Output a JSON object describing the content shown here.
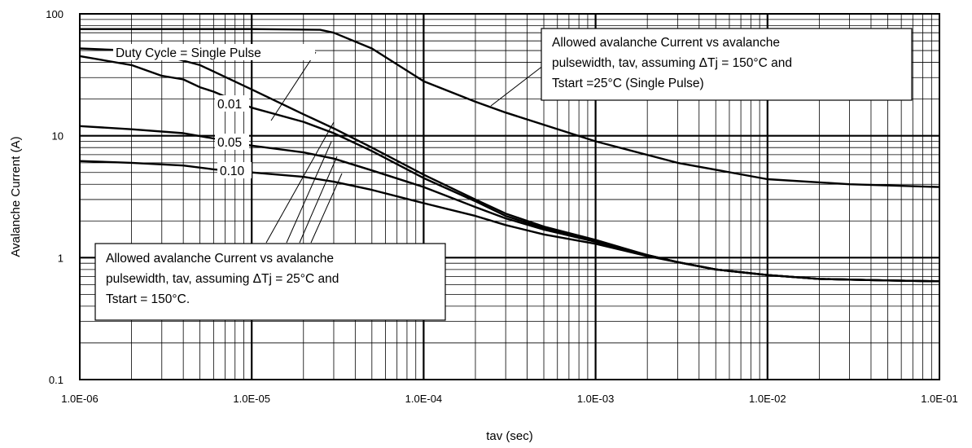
{
  "chart_data": {
    "type": "line",
    "title": "",
    "xlabel": "tav (sec)",
    "ylabel": "Avalanche Current (A)",
    "xscale": "log",
    "yscale": "log",
    "xlim": [
      1e-06,
      0.1
    ],
    "ylim": [
      0.1,
      100
    ],
    "grid": true,
    "x_tick_labels": [
      "1.0E-06",
      "1.0E-05",
      "1.0E-04",
      "1.0E-03",
      "1.0E-02",
      "1.0E-01"
    ],
    "y_tick_labels": [
      "0.1",
      "1",
      "10",
      "100"
    ],
    "series": [
      {
        "name": "Allowed avalanche Current (Single Pulse, Tstart = 25°C)",
        "points": [
          [
            1e-06,
            75
          ],
          [
            1e-05,
            75
          ],
          [
            2.5e-05,
            74
          ],
          [
            3e-05,
            70
          ],
          [
            5e-05,
            52
          ],
          [
            0.0001,
            28
          ],
          [
            0.0002,
            19
          ],
          [
            0.0003,
            15.5
          ],
          [
            0.001,
            9
          ],
          [
            0.003,
            6
          ],
          [
            0.01,
            4.4
          ],
          [
            0.03,
            4
          ],
          [
            0.1,
            3.8
          ]
        ]
      },
      {
        "name": "Single Pulse",
        "points": [
          [
            1e-06,
            52
          ],
          [
            2e-06,
            50
          ],
          [
            3e-06,
            46
          ],
          [
            5e-06,
            38
          ],
          [
            1e-05,
            24
          ],
          [
            2e-05,
            15
          ],
          [
            3e-05,
            11.5
          ],
          [
            5e-05,
            8
          ],
          [
            0.0001,
            4.8
          ],
          [
            0.0002,
            3
          ],
          [
            0.0003,
            2.3
          ],
          [
            0.0005,
            1.8
          ],
          [
            0.001,
            1.4
          ],
          [
            0.002,
            1.05
          ],
          [
            0.003,
            0.92
          ],
          [
            0.005,
            0.8
          ],
          [
            0.01,
            0.72
          ],
          [
            0.02,
            0.67
          ],
          [
            0.05,
            0.65
          ],
          [
            0.1,
            0.64
          ]
        ]
      },
      {
        "name": "0.01",
        "points": [
          [
            1e-06,
            45
          ],
          [
            2e-06,
            38
          ],
          [
            3e-06,
            31
          ],
          [
            4e-06,
            29
          ],
          [
            5e-06,
            25
          ],
          [
            6e-06,
            23
          ],
          [
            1e-05,
            17
          ],
          [
            2e-05,
            13
          ],
          [
            3e-05,
            10.5
          ],
          [
            5e-05,
            7.5
          ],
          [
            0.0001,
            4.5
          ],
          [
            0.0002,
            2.9
          ],
          [
            0.0003,
            2.2
          ],
          [
            0.0005,
            1.75
          ],
          [
            0.001,
            1.35
          ],
          [
            0.002,
            1.05
          ],
          [
            0.003,
            0.92
          ],
          [
            0.005,
            0.8
          ],
          [
            0.01,
            0.72
          ],
          [
            0.02,
            0.67
          ],
          [
            0.05,
            0.65
          ],
          [
            0.1,
            0.64
          ]
        ]
      },
      {
        "name": "0.05",
        "points": [
          [
            1e-06,
            12
          ],
          [
            2e-06,
            11.3
          ],
          [
            4e-06,
            10.5
          ],
          [
            6e-06,
            9.5
          ],
          [
            1e-05,
            8.3
          ],
          [
            2e-05,
            7.3
          ],
          [
            3e-05,
            6.5
          ],
          [
            5e-05,
            5.2
          ],
          [
            0.0001,
            3.8
          ],
          [
            0.0002,
            2.6
          ],
          [
            0.0003,
            2.1
          ],
          [
            0.0005,
            1.7
          ],
          [
            0.001,
            1.35
          ],
          [
            0.002,
            1.05
          ],
          [
            0.003,
            0.92
          ],
          [
            0.005,
            0.8
          ],
          [
            0.01,
            0.72
          ],
          [
            0.02,
            0.67
          ],
          [
            0.05,
            0.65
          ],
          [
            0.1,
            0.64
          ]
        ]
      },
      {
        "name": "0.10",
        "points": [
          [
            1e-06,
            6.2
          ],
          [
            2e-06,
            6
          ],
          [
            4e-06,
            5.7
          ],
          [
            6e-06,
            5.3
          ],
          [
            1e-05,
            5
          ],
          [
            2e-05,
            4.6
          ],
          [
            3e-05,
            4.2
          ],
          [
            5e-05,
            3.6
          ],
          [
            0.0001,
            2.8
          ],
          [
            0.0002,
            2.2
          ],
          [
            0.0003,
            1.85
          ],
          [
            0.0005,
            1.55
          ],
          [
            0.001,
            1.3
          ],
          [
            0.002,
            1.03
          ],
          [
            0.003,
            0.92
          ],
          [
            0.005,
            0.8
          ],
          [
            0.01,
            0.72
          ],
          [
            0.02,
            0.67
          ],
          [
            0.05,
            0.65
          ],
          [
            0.1,
            0.64
          ]
        ]
      }
    ],
    "duty_labels": [
      "Duty Cycle = Single Pulse",
      "0.01",
      "0.05",
      "0.10"
    ],
    "annotations": {
      "top_box": [
        "Allowed avalanche Current vs avalanche",
        "pulsewidth, tav, assuming ΔTj = 150°C and",
        "Tstart =25°C (Single Pulse)"
      ],
      "bottom_box": [
        "Allowed avalanche Current vs avalanche",
        "pulsewidth, tav, assuming ΔTj = 25°C and",
        "Tstart = 150°C."
      ]
    }
  }
}
